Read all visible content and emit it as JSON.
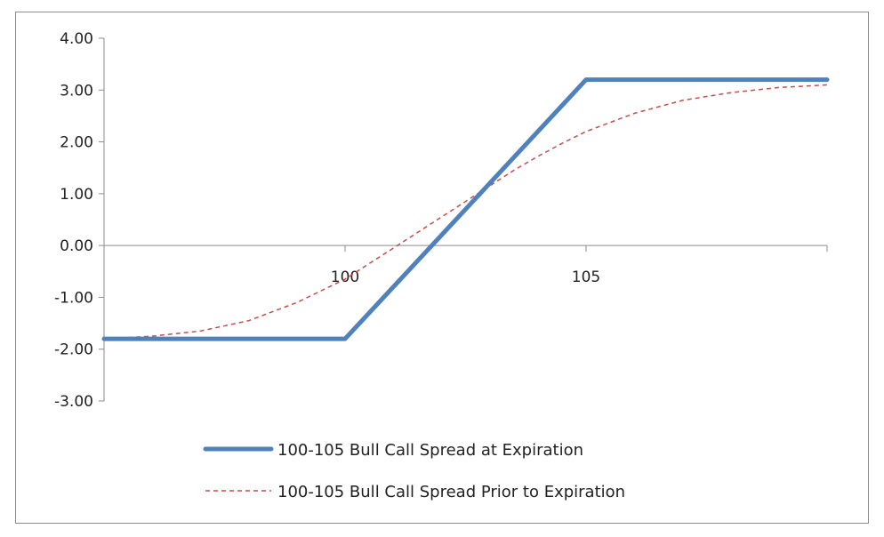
{
  "chart_data": {
    "type": "line",
    "title": "",
    "xlabel": "",
    "ylabel": "",
    "xlim": [
      95,
      110
    ],
    "ylim": [
      -3,
      4
    ],
    "x_ticks": [
      100,
      105
    ],
    "x_tick_labels": [
      "100",
      "105"
    ],
    "y_ticks": [
      4,
      3,
      2,
      1,
      0,
      -1,
      -2,
      -3
    ],
    "y_tick_labels": [
      "4.00",
      "3.00",
      "2.00",
      "1.00",
      "0.00",
      "-1.00",
      "-2.00",
      "-3.00"
    ],
    "grid": false,
    "legend_position": "bottom",
    "series": [
      {
        "name": "100-105 Bull Call Spread at Expiration",
        "color": "#4f81bd",
        "style": "solid",
        "x": [
          95,
          100,
          105,
          110
        ],
        "y": [
          -1.8,
          -1.8,
          3.2,
          3.2
        ]
      },
      {
        "name": "100-105 Bull Call Spread Prior to Expiration",
        "color": "#c0504d",
        "style": "dashed",
        "x": [
          95,
          96,
          97,
          98,
          99,
          100,
          100.5,
          101,
          101.5,
          102,
          102.5,
          103,
          103.5,
          104,
          104.5,
          105,
          106,
          107,
          108,
          109,
          110
        ],
        "y": [
          -1.8,
          -1.75,
          -1.65,
          -1.45,
          -1.1,
          -0.65,
          -0.35,
          -0.05,
          0.25,
          0.55,
          0.85,
          1.15,
          1.45,
          1.72,
          1.97,
          2.2,
          2.55,
          2.8,
          2.95,
          3.05,
          3.1
        ]
      }
    ]
  }
}
